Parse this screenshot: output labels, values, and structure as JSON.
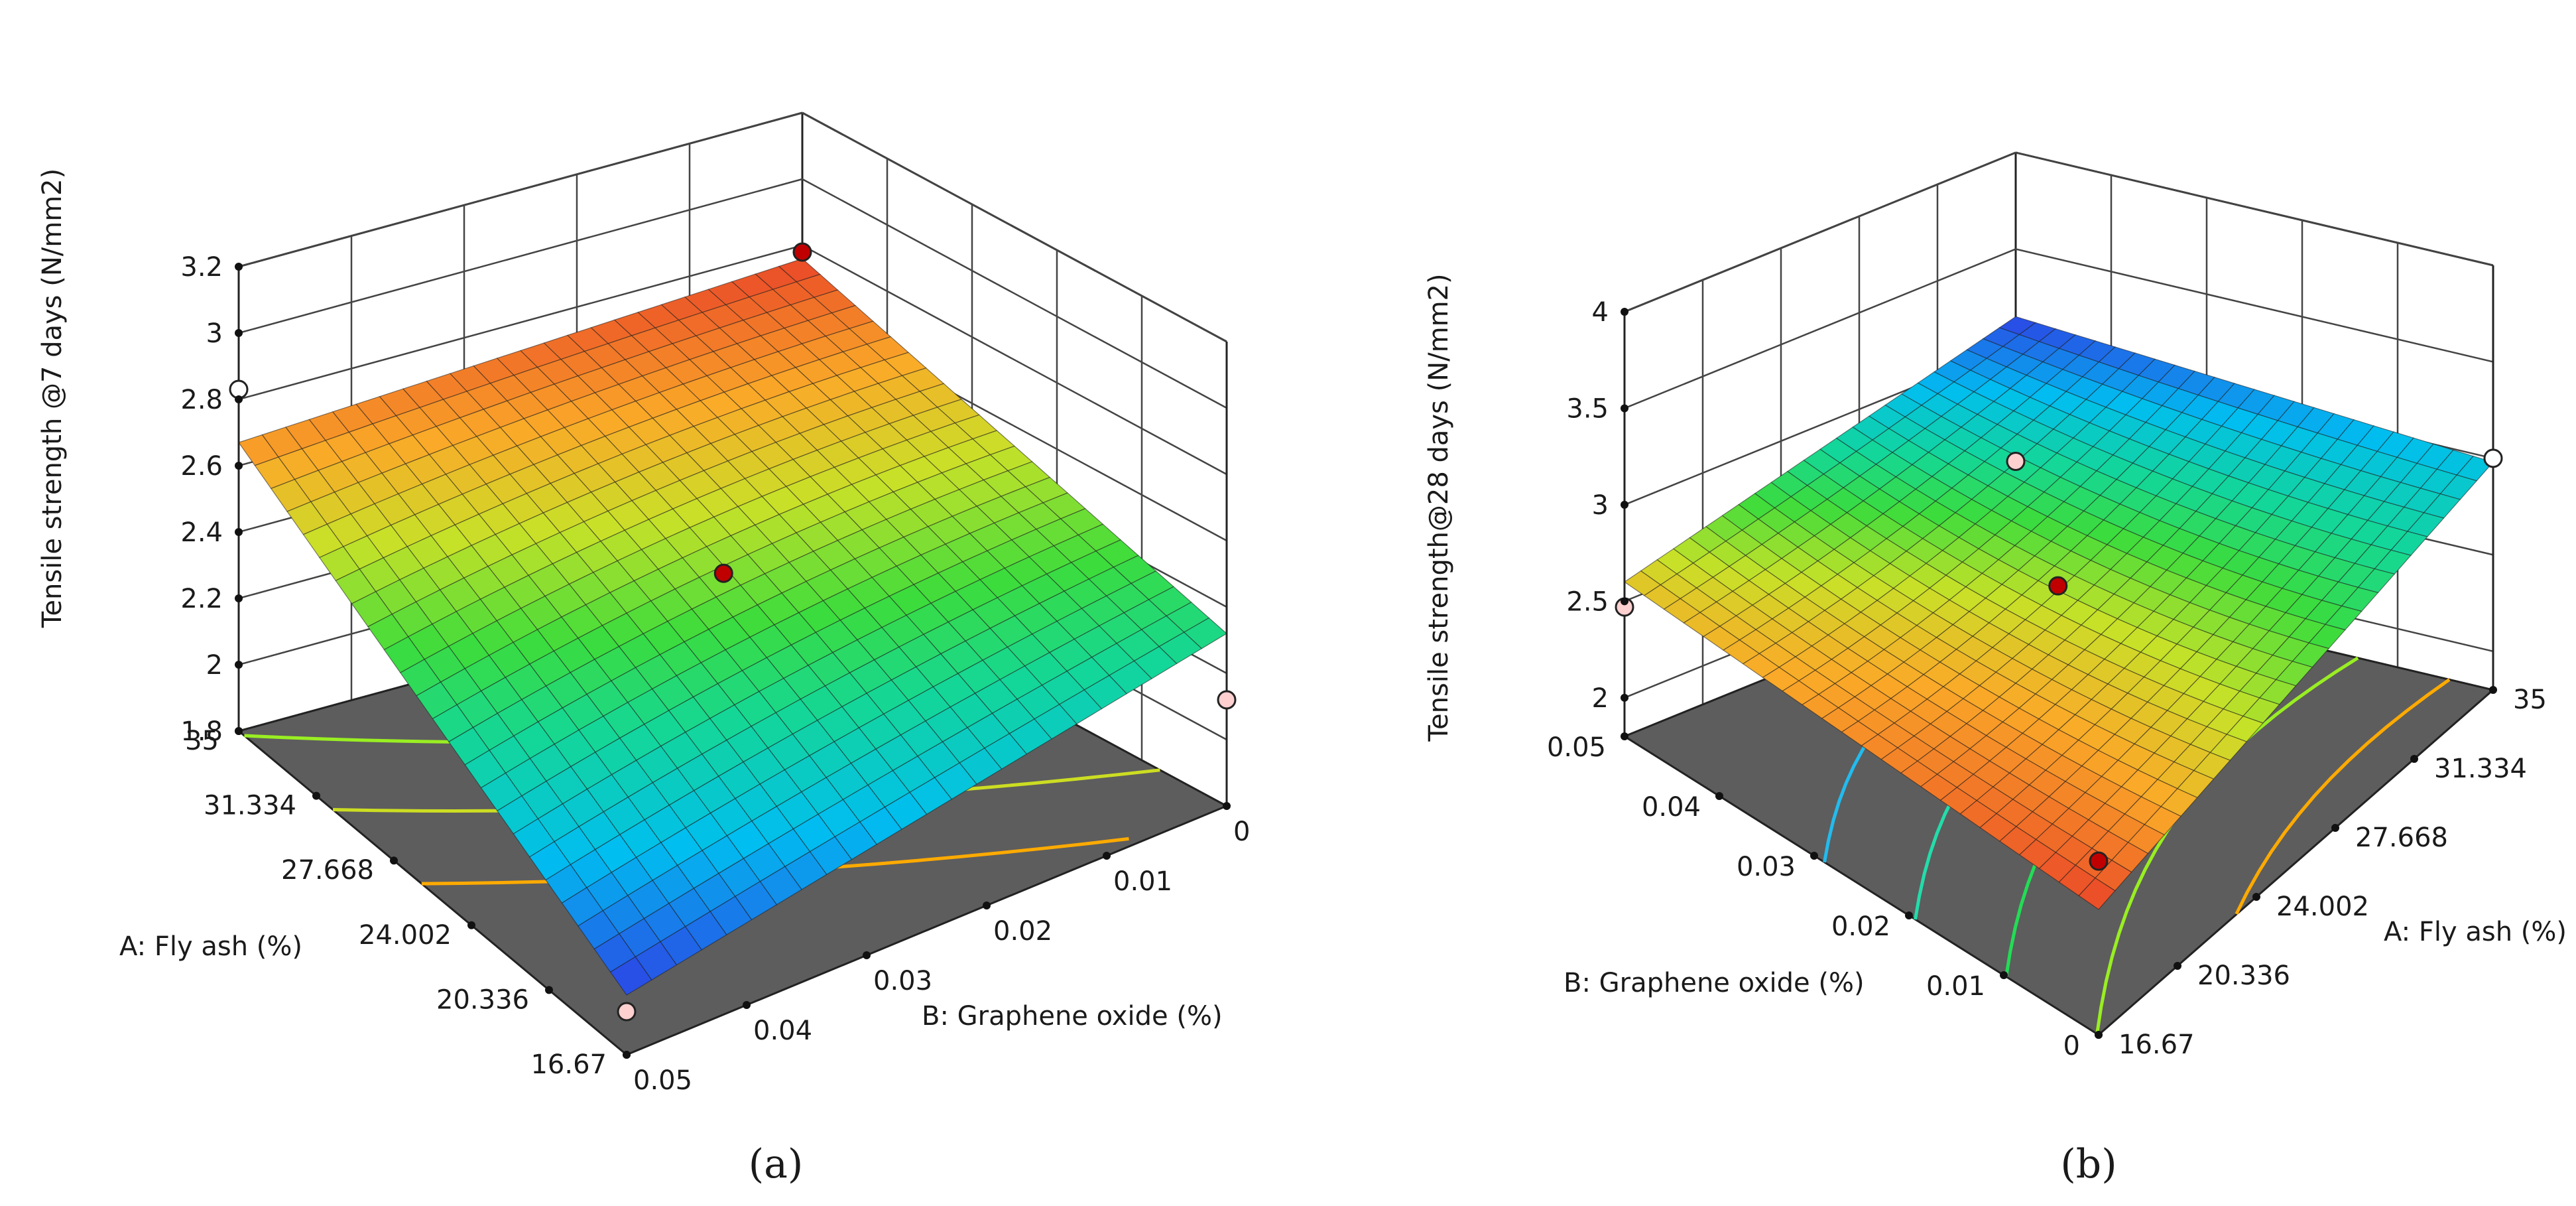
{
  "figure": {
    "panels": [
      "a",
      "b"
    ]
  },
  "chart_data": [
    {
      "panel": "a",
      "caption": "(a)",
      "type": "surface3d",
      "title": "",
      "zlabel": "Tensile strength @7 days (N/mm2)",
      "xlabel": "A: Fly ash (%)",
      "ylabel": "B: Graphene oxide (%)",
      "x_ticks": [
        "35",
        "31.334",
        "27.668",
        "24.002",
        "20.336",
        "16.67"
      ],
      "y_ticks": [
        "0.05",
        "0.04",
        "0.03",
        "0.02",
        "0.01",
        "0"
      ],
      "z_ticks": [
        "1.8",
        "2",
        "2.2",
        "2.4",
        "2.6",
        "2.8",
        "3",
        "3.2"
      ],
      "xlim": [
        16.67,
        35
      ],
      "ylim": [
        0,
        0.05
      ],
      "zlim": [
        1.8,
        3.2
      ],
      "surface_corners": {
        "fly_ash_35_go_0": 2.76,
        "fly_ash_16.67_go_0": 2.32,
        "fly_ash_35_go_0.05": 2.67,
        "fly_ash_16.67_go_0.05": 1.98
      },
      "design_points": [
        {
          "fly_ash": 35,
          "go": 0,
          "z": 2.78,
          "marker": "red"
        },
        {
          "fly_ash": 16.67,
          "go": 0.05,
          "z": 1.93,
          "marker": "pink"
        },
        {
          "fly_ash": 16.67,
          "go": 0,
          "z": 2.12,
          "marker": "pink"
        },
        {
          "fly_ash": 35,
          "go": 0.05,
          "z": 2.83,
          "marker": "white"
        },
        {
          "fly_ash": 25.835,
          "go": 0.025,
          "z": 2.46,
          "marker": "red"
        }
      ],
      "contour_colors": [
        "#22bbee",
        "#22ddaa",
        "#22dd55",
        "#99ee22",
        "#ccdd22",
        "#ffaa00"
      ]
    },
    {
      "panel": "b",
      "caption": "(b)",
      "type": "surface3d",
      "title": "",
      "zlabel": "Tensile strength@28 days (N/mm2)",
      "xlabel": "A: Fly ash (%)",
      "ylabel": "B: Graphene oxide (%)",
      "x_ticks": [
        "35",
        "31.334",
        "27.668",
        "24.002",
        "20.336",
        "16.67"
      ],
      "y_ticks": [
        "0.05",
        "0.04",
        "0.03",
        "0.02",
        "0.01",
        "0"
      ],
      "z_ticks": [
        "2",
        "2.5",
        "3",
        "3.5",
        "4"
      ],
      "xlim": [
        16.67,
        35
      ],
      "ylim": [
        0,
        0.05
      ],
      "zlim": [
        1.8,
        4
      ],
      "surface_corners": {
        "fly_ash_35_go_0": 2.98,
        "fly_ash_16.67_go_0": 2.45,
        "fly_ash_35_go_0.05": 3.15,
        "fly_ash_16.67_go_0.05": 2.6
      },
      "design_points": [
        {
          "fly_ash": 35,
          "go": 0,
          "z": 3.0,
          "marker": "white"
        },
        {
          "fly_ash": 35,
          "go": 0.05,
          "z": 2.4,
          "marker": "pink"
        },
        {
          "fly_ash": 16.67,
          "go": 0.05,
          "z": 2.47,
          "marker": "pink"
        },
        {
          "fly_ash": 25.835,
          "go": 0.025,
          "z": 2.7,
          "marker": "red"
        },
        {
          "fly_ash": 16.67,
          "go": 0,
          "z": 2.7,
          "marker": "red"
        }
      ],
      "contour_colors": [
        "#22bbee",
        "#22ddaa",
        "#22dd55",
        "#99ee22",
        "#ffaa00"
      ]
    }
  ]
}
